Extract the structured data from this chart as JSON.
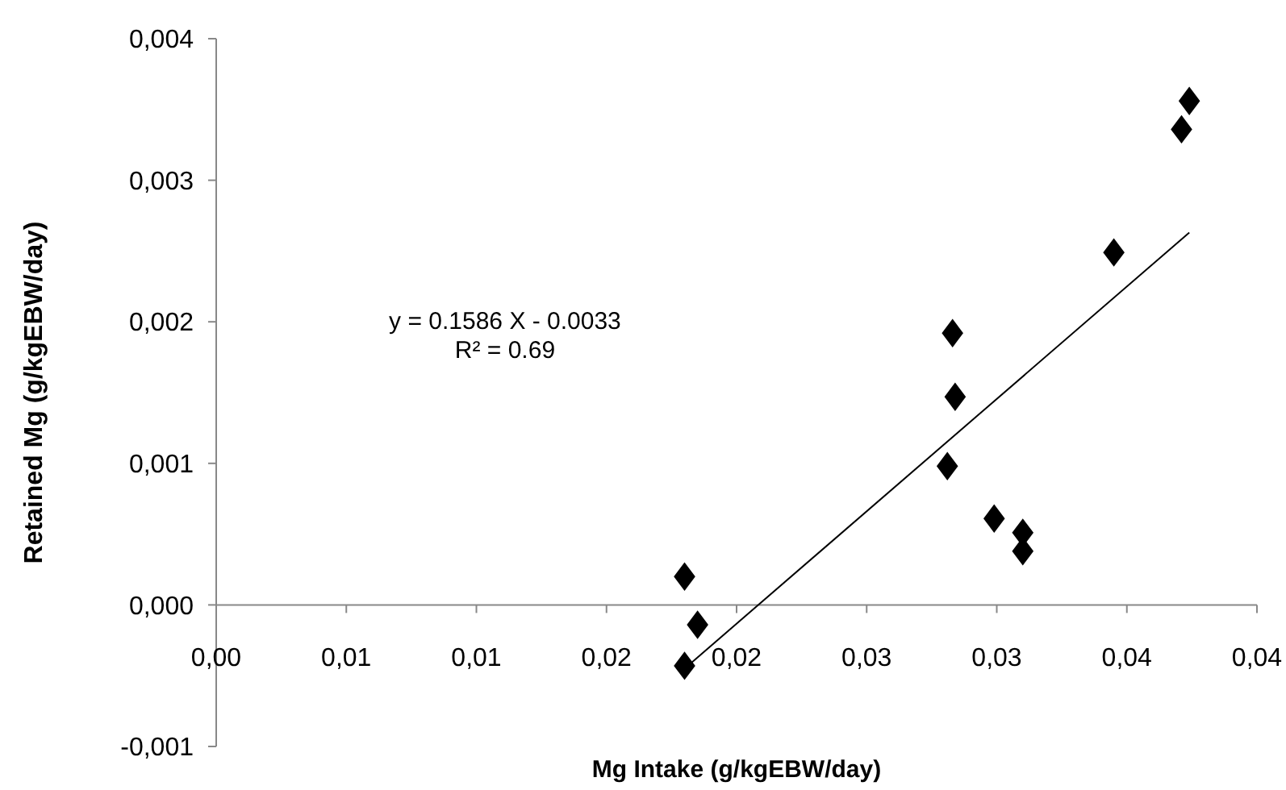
{
  "chart_data": {
    "type": "scatter",
    "xlabel": "Mg Intake (g/kgEBW/day)",
    "ylabel": "Retained Mg (g/kgEBW/day)",
    "annotations": [
      "y = 0.1586 X - 0.0033",
      "R² = 0.69"
    ],
    "xlim": [
      0,
      0.04
    ],
    "ylim": [
      -0.001,
      0.004
    ],
    "xticks": [
      {
        "value": 0,
        "label": "0,00"
      },
      {
        "value": 0.005,
        "label": "0,01"
      },
      {
        "value": 0.01,
        "label": "0,01"
      },
      {
        "value": 0.015,
        "label": "0,02"
      },
      {
        "value": 0.02,
        "label": "0,02"
      },
      {
        "value": 0.025,
        "label": "0,03"
      },
      {
        "value": 0.03,
        "label": "0,03"
      },
      {
        "value": 0.035,
        "label": "0,04"
      },
      {
        "value": 0.04,
        "label": "0,04"
      }
    ],
    "yticks": [
      {
        "value": -0.001,
        "label": "-0,001"
      },
      {
        "value": 0,
        "label": "0,000"
      },
      {
        "value": 0.001,
        "label": "0,001"
      },
      {
        "value": 0.002,
        "label": "0,002"
      },
      {
        "value": 0.003,
        "label": "0,003"
      },
      {
        "value": 0.004,
        "label": "0,004"
      }
    ],
    "grid": false,
    "series": [
      {
        "marker": "diamond",
        "color": "#000000",
        "x": [
          0.018,
          0.0185,
          0.018,
          0.0283,
          0.0284,
          0.0281,
          0.0299,
          0.031,
          0.031,
          0.0345,
          0.0371,
          0.0374
        ],
        "values": [
          0.0002,
          -0.00014,
          -0.00043,
          0.00192,
          0.00147,
          0.00098,
          0.00061,
          0.00051,
          0.00038,
          0.00249,
          0.00336,
          0.00356
        ]
      },
      {
        "type": "line",
        "color": "#000000",
        "x": [
          0.018,
          0.0374
        ],
        "values": [
          -0.00045,
          0.00263
        ]
      }
    ]
  }
}
